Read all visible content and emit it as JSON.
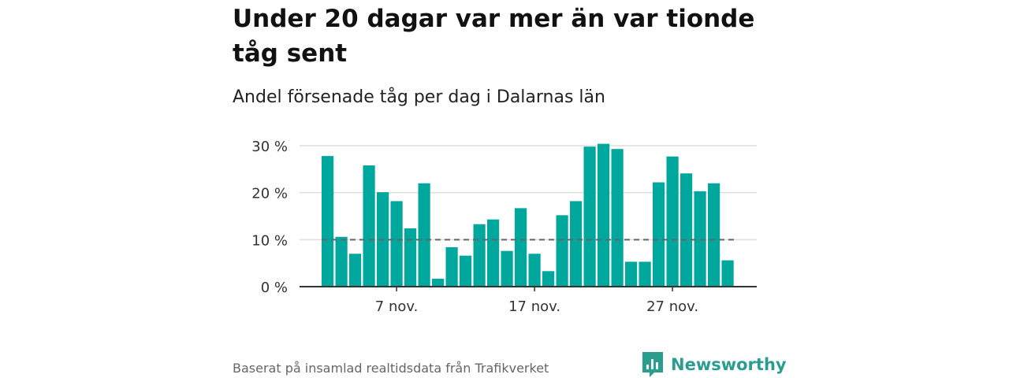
{
  "title": "Under 20 dagar var mer än var tionde tåg sent",
  "subtitle": "Andel försenade tåg per dag i Dalarnas län",
  "footer": {
    "source": "Baserat på insamlad realtidsdata från Trafikverket",
    "brand": "Newsworthy",
    "brand_icon": "bar-chart-speech-bubble-icon"
  },
  "colors": {
    "bar": "#00a79d",
    "reference_line": "#666666",
    "grid": "#dddddd",
    "baseline": "#333333",
    "brand": "#2a9d8f"
  },
  "chart_data": {
    "type": "bar",
    "title": "Under 20 dagar var mer än var tionde tåg sent",
    "subtitle": "Andel försenade tåg per dag i Dalarnas län",
    "x_ticks": [
      {
        "day": 7,
        "label": "7 nov."
      },
      {
        "day": 17,
        "label": "17 nov."
      },
      {
        "day": 27,
        "label": "27 nov."
      }
    ],
    "y_ticks": [
      {
        "value": 0,
        "label": "0 %"
      },
      {
        "value": 10,
        "label": "10 %"
      },
      {
        "value": 20,
        "label": "20 %"
      },
      {
        "value": 30,
        "label": "30 %"
      }
    ],
    "x": [
      2,
      3,
      4,
      5,
      6,
      7,
      8,
      9,
      10,
      11,
      12,
      13,
      14,
      15,
      16,
      17,
      18,
      19,
      20,
      21,
      22,
      23,
      24,
      25,
      26,
      27,
      28,
      29,
      30,
      31
    ],
    "values": [
      27.8,
      10.6,
      7.0,
      25.8,
      20.1,
      18.2,
      12.4,
      22.0,
      1.7,
      8.4,
      6.6,
      13.3,
      14.3,
      7.6,
      16.7,
      7.0,
      3.3,
      15.2,
      18.2,
      29.8,
      30.4,
      29.3,
      5.3,
      5.3,
      22.2,
      27.7,
      24.1,
      20.3,
      22.0,
      5.6
    ],
    "reference_line": 10,
    "ylim": [
      0,
      30
    ],
    "grid": true,
    "legend": "none"
  }
}
